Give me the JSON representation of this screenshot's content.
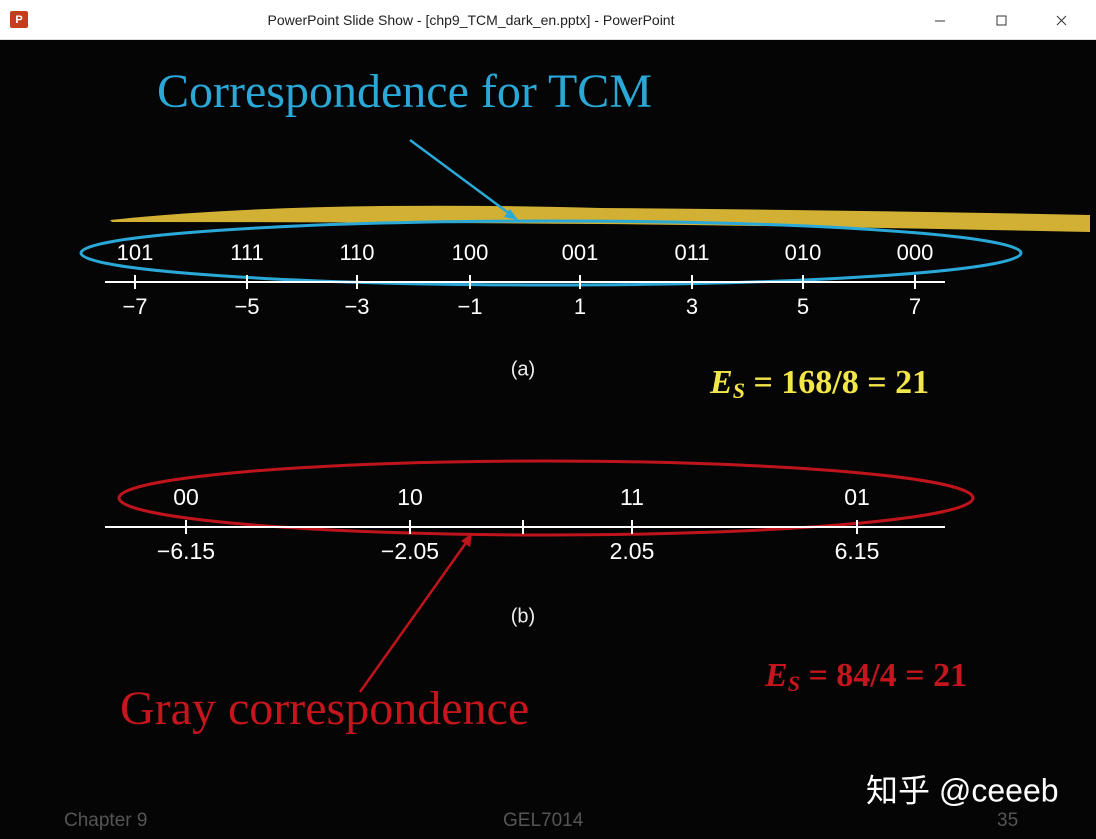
{
  "window": {
    "title": "PowerPoint Slide Show - [chp9_TCM_dark_en.pptx] - PowerPoint"
  },
  "slide": {
    "title": "Correspondence for TCM",
    "diagram_a": {
      "codes": [
        "101",
        "111",
        "110",
        "100",
        "001",
        "011",
        "010",
        "000"
      ],
      "levels": [
        "−7",
        "−5",
        "−3",
        "−1",
        "1",
        "3",
        "5",
        "7"
      ],
      "caption": "(a)"
    },
    "energy_a": {
      "symbol": "E",
      "subscript": "S",
      "expression": " = 168/8 = 21"
    },
    "diagram_b": {
      "codes": [
        "00",
        "10",
        "11",
        "01"
      ],
      "levels": [
        "−6.15",
        "−2.05",
        "2.05",
        "6.15"
      ],
      "caption": "(b)"
    },
    "energy_b": {
      "symbol": "E",
      "subscript": "S",
      "expression": " = 84/4 = 21"
    },
    "annotation": "Gray correspondence",
    "footer": {
      "left": "Chapter 9",
      "center": "GEL7014",
      "right": "35"
    },
    "watermark": "知乎 @ceeeb"
  }
}
